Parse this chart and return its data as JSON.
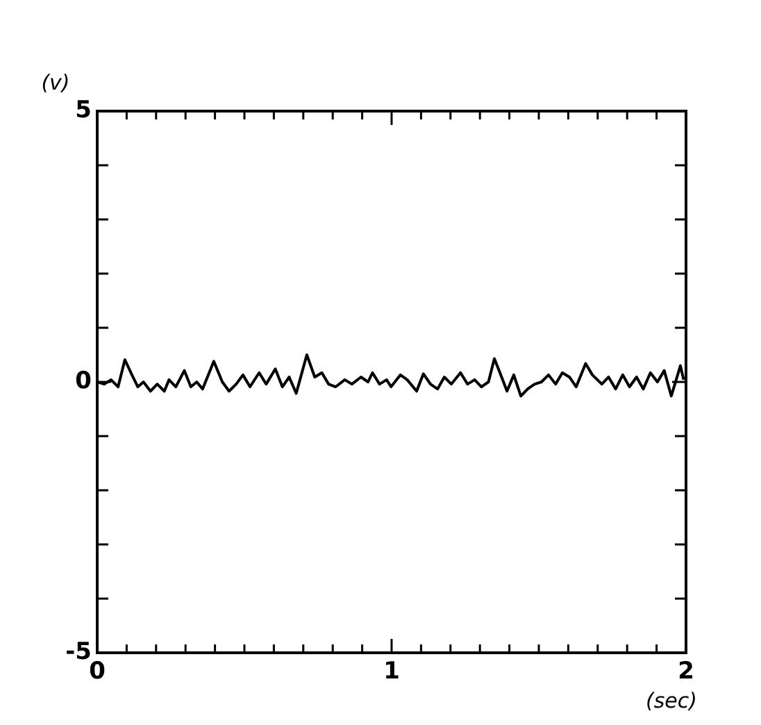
{
  "chart_data": {
    "type": "line",
    "xlabel": "(sec)",
    "ylabel": "(v)",
    "xlim": [
      0,
      2
    ],
    "ylim": [
      -5,
      5
    ],
    "xticks": [
      0,
      {
        "value": 0.1,
        "label": null
      },
      {
        "value": 0.2,
        "label": null
      },
      {
        "value": 0.3,
        "label": null
      },
      {
        "value": 0.4,
        "label": null
      },
      {
        "value": 0.5,
        "label": null
      },
      {
        "value": 0.6,
        "label": null
      },
      {
        "value": 0.7,
        "label": null
      },
      {
        "value": 0.8,
        "label": null
      },
      {
        "value": 0.9,
        "label": null
      },
      1,
      {
        "value": 1.1,
        "label": null
      },
      {
        "value": 1.2,
        "label": null
      },
      {
        "value": 1.3,
        "label": null
      },
      {
        "value": 1.4,
        "label": null
      },
      {
        "value": 1.5,
        "label": null
      },
      {
        "value": 1.6,
        "label": null
      },
      {
        "value": 1.7,
        "label": null
      },
      {
        "value": 1.8,
        "label": null
      },
      {
        "value": 1.9,
        "label": null
      },
      2
    ],
    "yticks": [
      -5,
      {
        "value": -4,
        "label": null
      },
      {
        "value": -3,
        "label": null
      },
      {
        "value": -2,
        "label": null
      },
      {
        "value": -1,
        "label": null
      },
      0,
      {
        "value": 1,
        "label": null
      },
      {
        "value": 2,
        "label": null
      },
      {
        "value": 3,
        "label": null
      },
      {
        "value": 4,
        "label": null
      },
      5
    ],
    "grid": false,
    "legend": false,
    "marker": "none",
    "line_style": "solid",
    "series": [
      {
        "color": "#000000",
        "x": [
          0,
          0.024,
          0.047,
          0.071,
          0.094,
          0.118,
          0.138,
          0.157,
          0.181,
          0.204,
          0.228,
          0.244,
          0.267,
          0.296,
          0.318,
          0.338,
          0.358,
          0.396,
          0.425,
          0.448,
          0.472,
          0.495,
          0.519,
          0.55,
          0.574,
          0.605,
          0.629,
          0.652,
          0.676,
          0.712,
          0.739,
          0.763,
          0.786,
          0.81,
          0.841,
          0.865,
          0.896,
          0.92,
          0.935,
          0.959,
          0.983,
          0.998,
          1.03,
          1.053,
          1.085,
          1.108,
          1.132,
          1.156,
          1.179,
          1.203,
          1.234,
          1.258,
          1.282,
          1.305,
          1.329,
          1.349,
          1.368,
          1.392,
          1.415,
          1.439,
          1.462,
          1.486,
          1.509,
          1.533,
          1.557,
          1.58,
          1.604,
          1.627,
          1.659,
          1.682,
          1.714,
          1.737,
          1.761,
          1.785,
          1.808,
          1.832,
          1.855,
          1.879,
          1.903,
          1.926,
          1.95,
          1.981,
          1.992
        ],
        "values": [
          0,
          -0.04,
          0.04,
          -0.09,
          0.41,
          0.13,
          -0.09,
          0,
          -0.17,
          -0.04,
          -0.17,
          0.04,
          -0.09,
          0.21,
          -0.09,
          0,
          -0.13,
          0.38,
          0,
          -0.17,
          -0.04,
          0.13,
          -0.09,
          0.17,
          -0.04,
          0.24,
          -0.09,
          0.09,
          -0.21,
          0.5,
          0.09,
          0.17,
          -0.04,
          -0.09,
          0.04,
          -0.04,
          0.09,
          0,
          0.17,
          -0.04,
          0.04,
          -0.09,
          0.13,
          0.04,
          -0.17,
          0.15,
          -0.04,
          -0.13,
          0.09,
          -0.04,
          0.17,
          -0.04,
          0.04,
          -0.09,
          0,
          0.43,
          0.17,
          -0.17,
          0.13,
          -0.26,
          -0.13,
          -0.04,
          0,
          0.13,
          -0.04,
          0.17,
          0.09,
          -0.09,
          0.34,
          0.13,
          -0.04,
          0.09,
          -0.13,
          0.13,
          -0.09,
          0.09,
          -0.13,
          0.17,
          0,
          0.21,
          -0.26,
          0.3,
          0.04
        ]
      }
    ]
  }
}
